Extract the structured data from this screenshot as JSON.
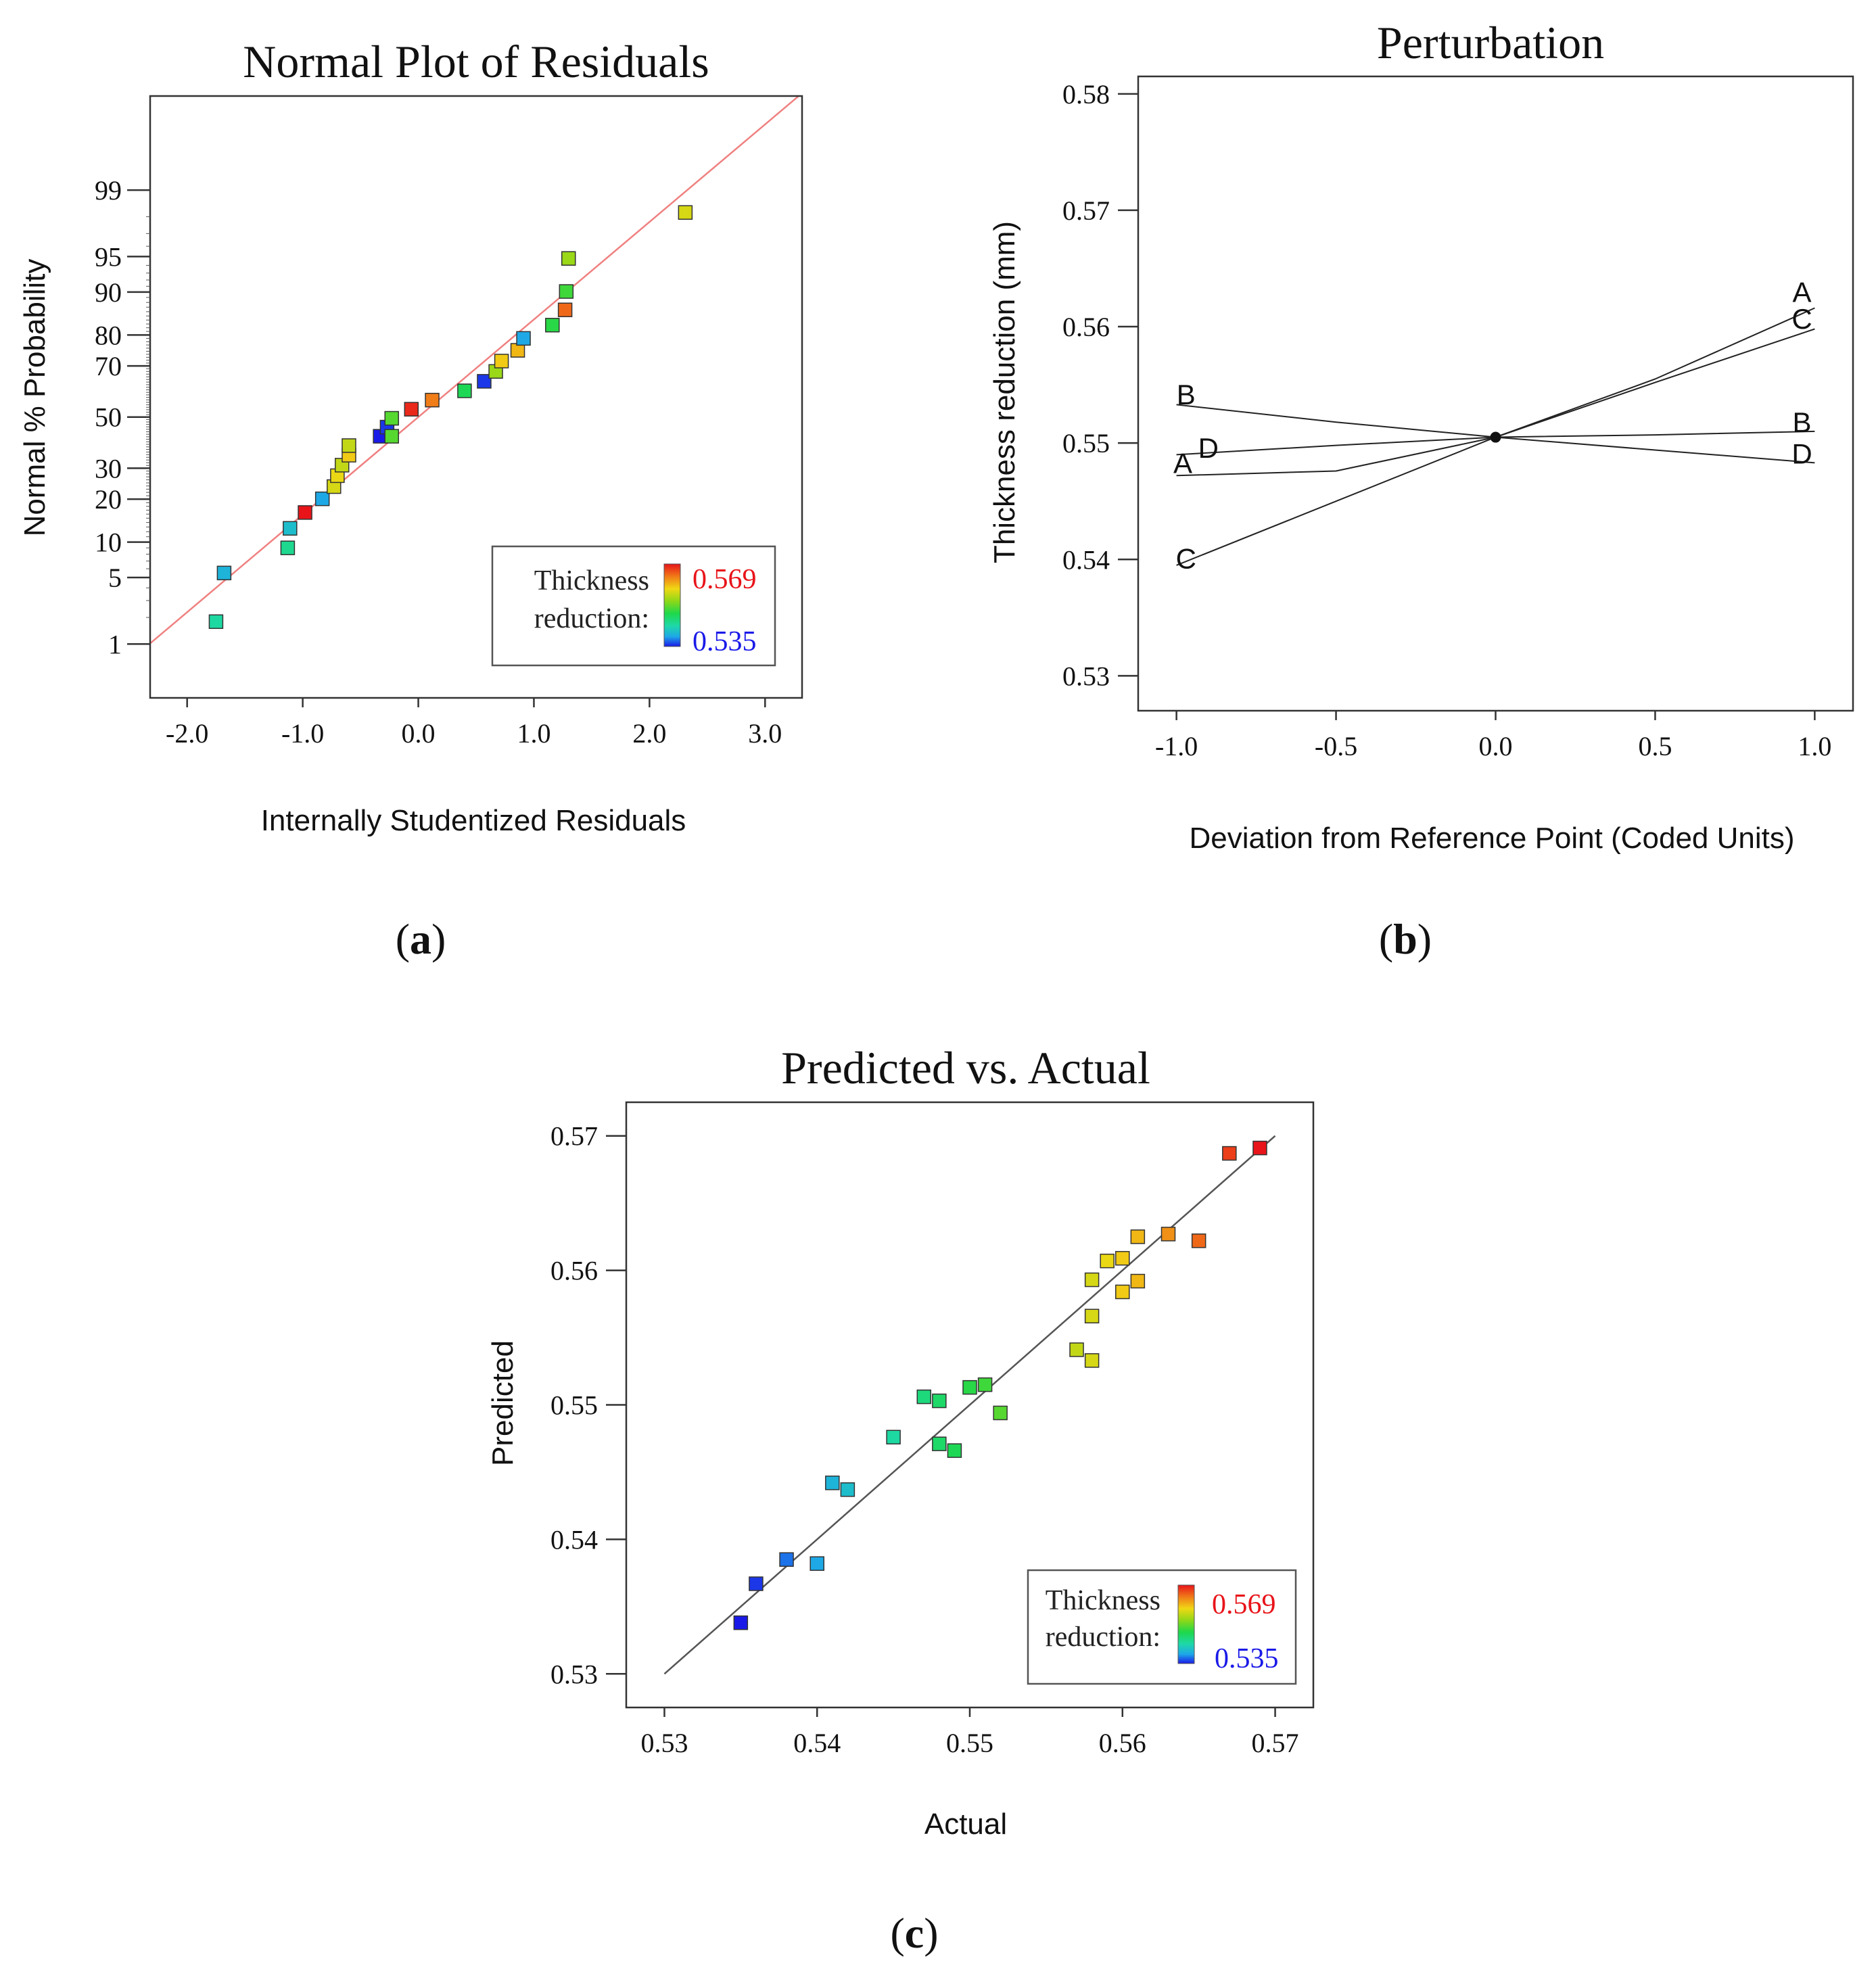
{
  "colors": {
    "high": "#e8141a",
    "low": "#1a1ae8",
    "fit_line_a": "#f08080",
    "fit_line_c": "#555555",
    "gradient": [
      "#e8141a",
      "#f07a18",
      "#f0d814",
      "#8ed818",
      "#1ed84a",
      "#1ed8a8",
      "#1ea8e8",
      "#1a1ae8"
    ]
  },
  "panels": {
    "a": {
      "label_open": "(",
      "label_letter": "a",
      "label_close": ")",
      "chart_data": {
        "type": "scatter",
        "title": "Normal Plot of Residuals",
        "xlabel": "Internally Studentized Residuals",
        "ylabel": "Normal % Probability",
        "xlim": [
          -2.32,
          3.32
        ],
        "ylim_percent": [
          0.2,
          99.95
        ],
        "x_ticks": [
          -2.0,
          -1.0,
          0.0,
          1.0,
          2.0,
          3.0
        ],
        "x_tick_labels": [
          "-2.0",
          "-1.0",
          "0.0",
          "1.0",
          "2.0",
          "3.0"
        ],
        "y_ticks": [
          1,
          5,
          10,
          20,
          30,
          50,
          70,
          80,
          90,
          95,
          99
        ],
        "y_tick_labels": [
          "1",
          "5",
          "10",
          "20",
          "30",
          "50",
          "70",
          "80",
          "90",
          "95",
          "99"
        ],
        "reference_line": {
          "x": [
            -2.32,
            3.32
          ],
          "z": [
            -2.32,
            3.32
          ]
        },
        "points": [
          {
            "x": -1.75,
            "p": 1.8,
            "v": 0.545
          },
          {
            "x": -1.68,
            "p": 5.5,
            "v": 0.541
          },
          {
            "x": -1.13,
            "p": 9.0,
            "v": 0.546
          },
          {
            "x": -1.11,
            "p": 12.7,
            "v": 0.542
          },
          {
            "x": -0.98,
            "p": 16.4,
            "v": 0.569
          },
          {
            "x": -0.83,
            "p": 20.1,
            "v": 0.54
          },
          {
            "x": -0.73,
            "p": 23.8,
            "v": 0.558
          },
          {
            "x": -0.7,
            "p": 27.4,
            "v": 0.559
          },
          {
            "x": -0.66,
            "p": 31.1,
            "v": 0.557
          },
          {
            "x": -0.6,
            "p": 34.8,
            "v": 0.56
          },
          {
            "x": -0.6,
            "p": 38.5,
            "v": 0.557
          },
          {
            "x": -0.33,
            "p": 42.2,
            "v": 0.535
          },
          {
            "x": -0.27,
            "p": 45.9,
            "v": 0.536
          },
          {
            "x": -0.23,
            "p": 42.2,
            "v": 0.552
          },
          {
            "x": -0.23,
            "p": 49.5,
            "v": 0.552
          },
          {
            "x": -0.06,
            "p": 53.2,
            "v": 0.568
          },
          {
            "x": 0.12,
            "p": 56.9,
            "v": 0.564
          },
          {
            "x": 0.4,
            "p": 60.6,
            "v": 0.549
          },
          {
            "x": 0.57,
            "p": 64.3,
            "v": 0.536
          },
          {
            "x": 0.67,
            "p": 68.0,
            "v": 0.555
          },
          {
            "x": 0.72,
            "p": 71.7,
            "v": 0.56
          },
          {
            "x": 0.86,
            "p": 75.3,
            "v": 0.561
          },
          {
            "x": 0.91,
            "p": 79.0,
            "v": 0.54
          },
          {
            "x": 1.16,
            "p": 82.7,
            "v": 0.55
          },
          {
            "x": 1.27,
            "p": 86.4,
            "v": 0.565
          },
          {
            "x": 1.28,
            "p": 90.1,
            "v": 0.551
          },
          {
            "x": 1.3,
            "p": 94.8,
            "v": 0.555
          },
          {
            "x": 2.31,
            "p": 98.2,
            "v": 0.558
          }
        ],
        "legend": {
          "title_line1": "Thickness",
          "title_line2": "reduction:",
          "high": "0.569",
          "low": "0.535",
          "position": "bottom-right"
        }
      }
    },
    "b": {
      "label_open": "(",
      "label_letter": "b",
      "label_close": ")",
      "chart_data": {
        "type": "line",
        "title": "Perturbation",
        "xlabel": "Deviation from Reference Point (Coded Units)",
        "ylabel": "Thickness reduction (mm)",
        "xlim": [
          -1.12,
          1.12
        ],
        "ylim": [
          0.527,
          0.5815
        ],
        "x_ticks": [
          -1.0,
          -0.5,
          0.0,
          0.5,
          1.0
        ],
        "x_tick_labels": [
          "-1.0",
          "-0.5",
          "0.0",
          "0.5",
          "1.0"
        ],
        "y_ticks": [
          0.53,
          0.54,
          0.55,
          0.56,
          0.57,
          0.58
        ],
        "y_tick_labels": [
          "0.53",
          "0.54",
          "0.55",
          "0.56",
          "0.57",
          "0.58"
        ],
        "reference_point": {
          "x": 0.0,
          "y": 0.5505
        },
        "series": [
          {
            "name": "A",
            "x": [
              -1.0,
              -0.5,
              0.0,
              0.5,
              1.0
            ],
            "y": [
              0.5472,
              0.5476,
              0.5505,
              0.5555,
              0.5616
            ]
          },
          {
            "name": "B",
            "x": [
              -1.0,
              -0.5,
              0.0,
              0.5,
              1.0
            ],
            "y": [
              0.5533,
              0.5518,
              0.5505,
              0.5494,
              0.5483
            ]
          },
          {
            "name": "C",
            "x": [
              -1.0,
              -0.5,
              0.0,
              0.5,
              1.0
            ],
            "y": [
              0.5395,
              0.545,
              0.5505,
              0.5552,
              0.5598
            ]
          },
          {
            "name": "D",
            "x": [
              -1.0,
              -0.5,
              0.0,
              0.5,
              1.0
            ],
            "y": [
              0.549,
              0.5498,
              0.5505,
              0.5507,
              0.551
            ]
          }
        ],
        "curve_labels": [
          {
            "text": "A",
            "x": -0.98,
            "y": 0.5483
          },
          {
            "text": "D",
            "x": -0.9,
            "y": 0.5496
          },
          {
            "text": "B",
            "x": -0.97,
            "y": 0.5542
          },
          {
            "text": "C",
            "x": -0.97,
            "y": 0.5401
          },
          {
            "text": "A",
            "x": 0.96,
            "y": 0.563
          },
          {
            "text": "C",
            "x": 0.96,
            "y": 0.5607
          },
          {
            "text": "B",
            "x": 0.96,
            "y": 0.5518
          },
          {
            "text": "D",
            "x": 0.96,
            "y": 0.5491
          }
        ]
      }
    },
    "c": {
      "label_open": "(",
      "label_letter": "c",
      "label_close": ")",
      "chart_data": {
        "type": "scatter",
        "title": "Predicted vs. Actual",
        "xlabel": "Actual",
        "ylabel": "Predicted",
        "xlim": [
          0.5275,
          0.5725
        ],
        "ylim": [
          0.5275,
          0.5725
        ],
        "x_ticks": [
          0.53,
          0.54,
          0.55,
          0.56,
          0.57
        ],
        "x_tick_labels": [
          "0.53",
          "0.54",
          "0.55",
          "0.56",
          "0.57"
        ],
        "y_ticks": [
          0.53,
          0.54,
          0.55,
          0.56,
          0.57
        ],
        "y_tick_labels": [
          "0.53",
          "0.54",
          "0.55",
          "0.56",
          "0.57"
        ],
        "reference_line": {
          "x": [
            0.53,
            0.57
          ],
          "y": [
            0.53,
            0.57
          ]
        },
        "points": [
          {
            "x": 0.535,
            "y": 0.5338
          },
          {
            "x": 0.536,
            "y": 0.5367
          },
          {
            "x": 0.538,
            "y": 0.5385
          },
          {
            "x": 0.54,
            "y": 0.5382
          },
          {
            "x": 0.541,
            "y": 0.5442
          },
          {
            "x": 0.542,
            "y": 0.5437
          },
          {
            "x": 0.545,
            "y": 0.5476
          },
          {
            "x": 0.547,
            "y": 0.5506
          },
          {
            "x": 0.548,
            "y": 0.5503
          },
          {
            "x": 0.548,
            "y": 0.5471
          },
          {
            "x": 0.549,
            "y": 0.5466
          },
          {
            "x": 0.55,
            "y": 0.5513
          },
          {
            "x": 0.551,
            "y": 0.5515
          },
          {
            "x": 0.552,
            "y": 0.5494
          },
          {
            "x": 0.557,
            "y": 0.5541
          },
          {
            "x": 0.558,
            "y": 0.5533
          },
          {
            "x": 0.558,
            "y": 0.5566
          },
          {
            "x": 0.558,
            "y": 0.5593
          },
          {
            "x": 0.559,
            "y": 0.5607
          },
          {
            "x": 0.56,
            "y": 0.5609
          },
          {
            "x": 0.56,
            "y": 0.5584
          },
          {
            "x": 0.561,
            "y": 0.5592
          },
          {
            "x": 0.561,
            "y": 0.5625
          },
          {
            "x": 0.563,
            "y": 0.5627
          },
          {
            "x": 0.565,
            "y": 0.5622
          },
          {
            "x": 0.567,
            "y": 0.5687
          },
          {
            "x": 0.569,
            "y": 0.5691
          }
        ],
        "legend": {
          "title_line1": "Thickness",
          "title_line2": "reduction:",
          "high": "0.569",
          "low": "0.535",
          "position": "bottom-right"
        }
      }
    }
  }
}
